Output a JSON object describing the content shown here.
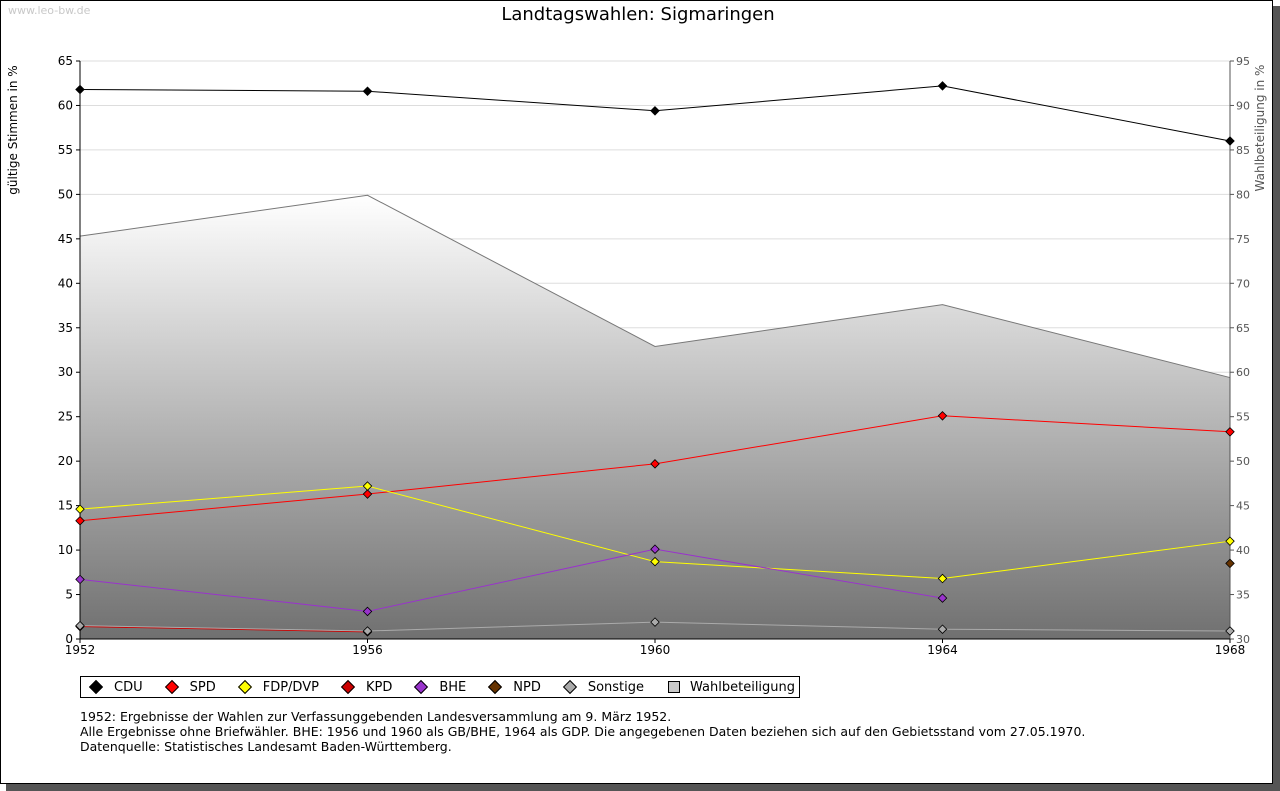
{
  "watermark": "www.leo-bw.de",
  "title": "Landtagswahlen: Sigmaringen",
  "notes": [
    "1952: Ergebnisse der Wahlen zur Verfassunggebenden Landesversammlung am 9. März 1952.",
    "Alle Ergebnisse ohne Briefwähler. BHE: 1956 und 1960 als GB/BHE, 1964 als GDP. Die angegebenen Daten beziehen sich auf den Gebietsstand vom 27.05.1970.",
    "",
    "Datenquelle: Statistisches Landesamt Baden-Württemberg."
  ],
  "chart_data": {
    "type": "line",
    "title": "Landtagswahlen: Sigmaringen",
    "xlabel": "",
    "ylabel": "gültige Stimmen in %",
    "y2label": "Wahlbeteiligung in %",
    "categories": [
      "1952",
      "1956",
      "1960",
      "1964",
      "1968"
    ],
    "ylim": [
      0,
      65
    ],
    "y2lim": [
      30,
      95
    ],
    "yticks": [
      0,
      5,
      10,
      15,
      20,
      25,
      30,
      35,
      40,
      45,
      50,
      55,
      60,
      65
    ],
    "y2ticks": [
      30,
      35,
      40,
      45,
      50,
      55,
      60,
      65,
      70,
      75,
      80,
      85,
      90,
      95
    ],
    "grid": true,
    "legend_position": "bottom",
    "area_series": {
      "name": "Wahlbeteiligung",
      "axis": "right",
      "values": [
        75.3,
        79.9,
        62.9,
        67.6,
        59.4
      ],
      "color": "#c8c8c8"
    },
    "series": [
      {
        "name": "CDU",
        "color": "#000000",
        "values": [
          61.8,
          61.6,
          59.4,
          62.2,
          56.0
        ]
      },
      {
        "name": "SPD",
        "color": "#ff0000",
        "values": [
          13.3,
          16.3,
          19.7,
          25.1,
          23.3
        ]
      },
      {
        "name": "FDP/DVP",
        "color": "#ffff00",
        "values": [
          14.6,
          17.2,
          8.7,
          6.8,
          11.0
        ]
      },
      {
        "name": "KPD",
        "color": "#cc0000",
        "values": [
          1.4,
          0.8,
          null,
          null,
          null
        ]
      },
      {
        "name": "BHE",
        "color": "#9933cc",
        "values": [
          6.7,
          3.1,
          10.1,
          4.6,
          null
        ]
      },
      {
        "name": "NPD",
        "color": "#663300",
        "values": [
          null,
          null,
          null,
          null,
          8.5
        ]
      },
      {
        "name": "Sonstige",
        "color": "#aaaaaa",
        "values": [
          1.5,
          0.9,
          1.9,
          1.1,
          0.9
        ]
      }
    ]
  }
}
